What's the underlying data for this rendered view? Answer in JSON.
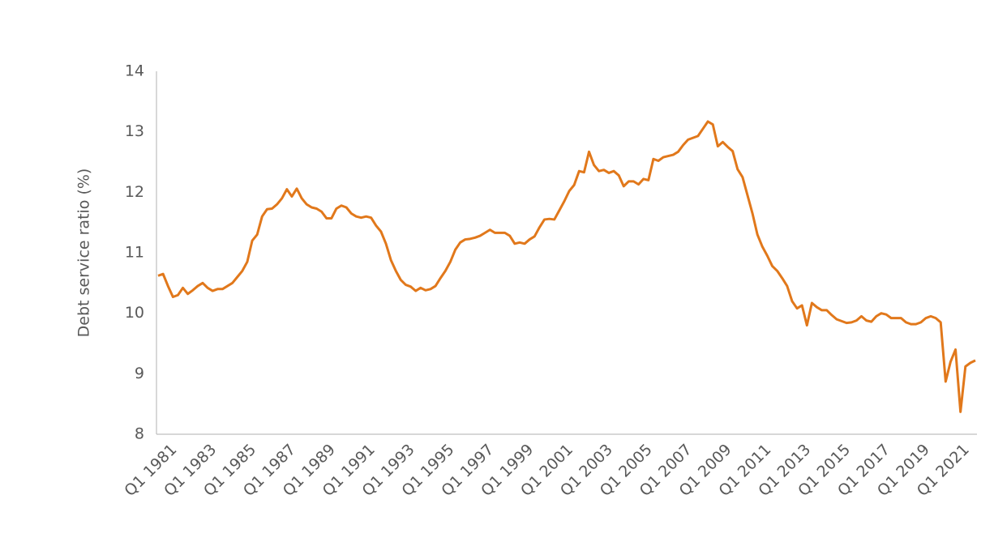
{
  "chart_data": {
    "type": "line",
    "y_label": "Debt service ratio (%)",
    "categories": [
      "Q1 1981",
      null,
      null,
      null,
      null,
      null,
      null,
      null,
      "Q1 1983",
      null,
      null,
      null,
      null,
      null,
      null,
      null,
      "Q1 1985",
      null,
      null,
      null,
      null,
      null,
      null,
      null,
      "Q1 1987",
      null,
      null,
      null,
      null,
      null,
      null,
      null,
      "Q1 1989",
      null,
      null,
      null,
      null,
      null,
      null,
      null,
      "Q1 1991",
      null,
      null,
      null,
      null,
      null,
      null,
      null,
      "Q1 1993",
      null,
      null,
      null,
      null,
      null,
      null,
      null,
      "Q1 1995",
      null,
      null,
      null,
      null,
      null,
      null,
      null,
      "Q1 1997",
      null,
      null,
      null,
      null,
      null,
      null,
      null,
      "Q1 1999",
      null,
      null,
      null,
      null,
      null,
      null,
      null,
      "Q1 2001",
      null,
      null,
      null,
      null,
      null,
      null,
      null,
      "Q1 2003",
      null,
      null,
      null,
      null,
      null,
      null,
      null,
      "Q1 2005",
      null,
      null,
      null,
      null,
      null,
      null,
      null,
      "Q1 2007",
      null,
      null,
      null,
      null,
      null,
      null,
      null,
      "Q1 2009",
      null,
      null,
      null,
      null,
      null,
      null,
      null,
      "Q1 2011",
      null,
      null,
      null,
      null,
      null,
      null,
      null,
      "Q1 2013",
      null,
      null,
      null,
      null,
      null,
      null,
      null,
      "Q1 2015",
      null,
      null,
      null,
      null,
      null,
      null,
      null,
      "Q1 2017",
      null,
      null,
      null,
      null,
      null,
      null,
      null,
      "Q1 2019",
      null,
      null,
      null,
      null,
      null,
      null,
      null,
      "Q1 2021",
      null,
      null,
      null,
      null,
      null
    ],
    "values": [
      10.62,
      10.65,
      10.45,
      10.27,
      10.3,
      10.42,
      10.32,
      10.38,
      10.45,
      10.5,
      10.42,
      10.37,
      10.4,
      10.4,
      10.45,
      10.5,
      10.6,
      10.7,
      10.85,
      11.2,
      11.3,
      11.6,
      11.72,
      11.73,
      11.8,
      11.9,
      12.05,
      11.93,
      12.06,
      11.9,
      11.8,
      11.75,
      11.73,
      11.68,
      11.57,
      11.57,
      11.73,
      11.78,
      11.75,
      11.65,
      11.6,
      11.58,
      11.6,
      11.58,
      11.45,
      11.35,
      11.15,
      10.88,
      10.7,
      10.55,
      10.47,
      10.44,
      10.37,
      10.42,
      10.38,
      10.4,
      10.45,
      10.58,
      10.7,
      10.85,
      11.05,
      11.17,
      11.22,
      11.23,
      11.25,
      11.28,
      11.33,
      11.38,
      11.33,
      11.33,
      11.33,
      11.28,
      11.15,
      11.17,
      11.15,
      11.22,
      11.27,
      11.42,
      11.55,
      11.56,
      11.55,
      11.7,
      11.85,
      12.02,
      12.12,
      12.35,
      12.33,
      12.67,
      12.45,
      12.35,
      12.37,
      12.32,
      12.35,
      12.28,
      12.1,
      12.18,
      12.18,
      12.13,
      12.22,
      12.2,
      12.55,
      12.52,
      12.58,
      12.6,
      12.62,
      12.67,
      12.78,
      12.87,
      12.9,
      12.93,
      13.05,
      13.17,
      13.12,
      12.76,
      12.83,
      12.75,
      12.68,
      12.38,
      12.25,
      11.95,
      11.65,
      11.3,
      11.1,
      10.95,
      10.78,
      10.7,
      10.58,
      10.45,
      10.2,
      10.08,
      10.13,
      9.8,
      10.17,
      10.1,
      10.05,
      10.05,
      9.97,
      9.9,
      9.87,
      9.84,
      9.85,
      9.88,
      9.95,
      9.88,
      9.86,
      9.95,
      10.0,
      9.98,
      9.92,
      9.92,
      9.92,
      9.85,
      9.82,
      9.82,
      9.85,
      9.92,
      9.95,
      9.92,
      9.85,
      8.87,
      9.2,
      9.4,
      8.37,
      9.12,
      9.18,
      9.22
    ],
    "color": "#e1781b",
    "ylim": [
      8,
      14
    ],
    "yticks": [
      8,
      9,
      10,
      11,
      12,
      13,
      14
    ],
    "grid": false
  }
}
